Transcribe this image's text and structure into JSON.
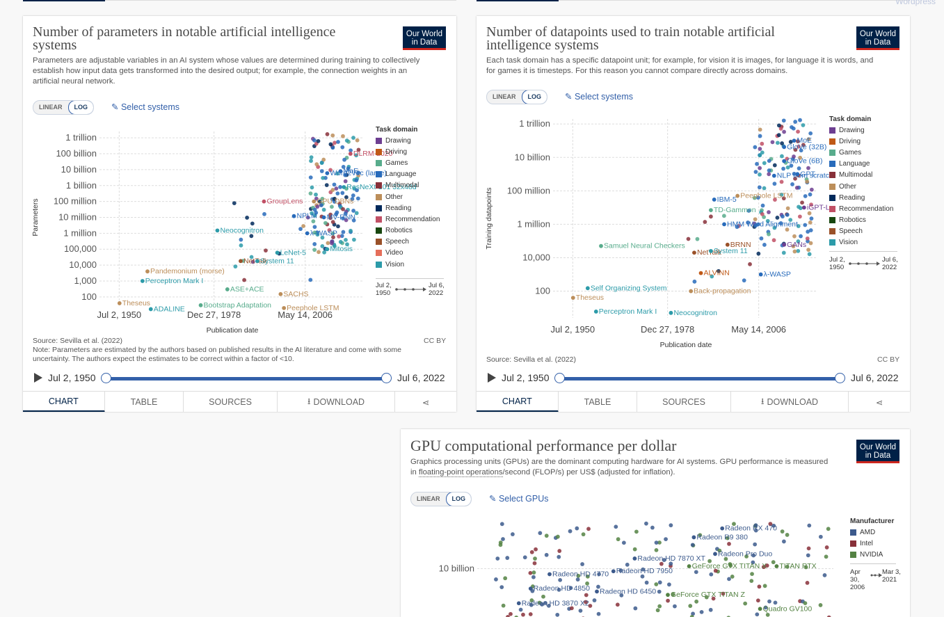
{
  "page": {
    "watermark": "Wordpress"
  },
  "tabs": {
    "chart": "CHART",
    "table": "TABLE",
    "sources": "SOURCES",
    "download": "DOWNLOAD"
  },
  "scale": {
    "linear": "LINEAR",
    "log": "LOG"
  },
  "logo": {
    "line1": "Our World",
    "line2": "in Data"
  },
  "colors": {
    "Drawing": "#6d3e91",
    "Driving": "#c05917",
    "Games": "#58ac8c",
    "Language": "#286bbb",
    "Multimodal": "#883039",
    "Other": "#bc8e5a",
    "Reading": "#00295b",
    "Recommendation": "#c15065",
    "Robotics": "#18470f",
    "Speech": "#9a5129",
    "Video": "#e56e5a",
    "Vision": "#2c9ba9",
    "AMD": "#3c5a8c",
    "Intel": "#883039",
    "NVIDIA": "#548243",
    "accent": "#3360a9",
    "brand": "#002147"
  },
  "card1": {
    "title": "Number of parameters in notable artificial intelligence systems",
    "subtitle": "Parameters are adjustable variables in an AI system whose values are determined during training to collectively establish how input data gets transformed into the desired output; for example, the connection weights in an artificial neural network.",
    "select_label": "Select systems",
    "legend_title": "Task domain",
    "legend": [
      "Drawing",
      "Driving",
      "Games",
      "Language",
      "Multimodal",
      "Other",
      "Reading",
      "Recommendation",
      "Robotics",
      "Speech",
      "Video",
      "Vision"
    ],
    "time_start": "Jul 2, 1950",
    "time_end": "Jul 6, 2022",
    "source": "Source: Sevilla et al. (2022)",
    "note": "Note: Parameters are estimated by the authors based on published results in the AI literature and come with some uncertainty. The authors expect the estimates to be correct within a factor of <10.",
    "license": "CC BY"
  },
  "card2": {
    "title": "Number of datapoints used to train notable artificial intelligence systems",
    "subtitle": "Each task domain has a specific datapoint unit; for example, for vision it is images, for language it is words, and for games it is timesteps. For this reason you cannot compare directly across domains.",
    "select_label": "Select systems",
    "legend_title": "Task domain",
    "legend": [
      "Drawing",
      "Driving",
      "Games",
      "Language",
      "Multimodal",
      "Other",
      "Reading",
      "Recommendation",
      "Robotics",
      "Speech",
      "Vision"
    ],
    "time_start": "Jul 2, 1950",
    "time_end": "Jul 6, 2022",
    "source": "Source: Sevilla et al. (2022)",
    "license": "CC BY"
  },
  "card3": {
    "title": "GPU computational performance per dollar",
    "subtitle_a": "Graphics processing units (GPUs) are the dominant computing hardware for AI systems. GPU performance is measured in ",
    "subtitle_link": "floating-point operations",
    "subtitle_b": "/second (FLOP/s) per US$ (adjusted for inflation).",
    "select_label": "Select GPUs",
    "legend_title": "Manufacturer",
    "legend": [
      "AMD",
      "Intel",
      "NVIDIA"
    ],
    "time_start": "Apr 30, 2006",
    "time_end": "Mar 3, 2021"
  },
  "chart_data": [
    {
      "type": "scatter",
      "title": "Number of parameters in notable artificial intelligence systems",
      "xlabel": "Publication date",
      "ylabel": "Parameters",
      "yscale": "log",
      "x_ticks": [
        "Jul 2, 1950",
        "Dec 27, 1978",
        "May 14, 2006"
      ],
      "y_ticks": [
        "100",
        "1,000",
        "10,000",
        "100,000",
        "1 million",
        "10 million",
        "100 million",
        "1 billion",
        "10 billion",
        "100 billion",
        "1 trillion"
      ],
      "grid": true,
      "legend": "right",
      "points": [
        {
          "label": "Theseus",
          "domain": "Other",
          "x": 1950.6,
          "y": 40
        },
        {
          "label": "Perceptron Mark I",
          "domain": "Vision",
          "x": 1957.5,
          "y": 1000
        },
        {
          "label": "ADALINE",
          "domain": "Vision",
          "x": 1960,
          "y": 17
        },
        {
          "label": "Pandemonium (morse)",
          "domain": "Other",
          "x": 1959,
          "y": 4000
        },
        {
          "label": "Neocognitron",
          "domain": "Vision",
          "x": 1980,
          "y": 1500000
        },
        {
          "label": "Bootstrap Adaptation",
          "domain": "Games",
          "x": 1975,
          "y": 30
        },
        {
          "label": "ASE+ACE",
          "domain": "Games",
          "x": 1983,
          "y": 300
        },
        {
          "label": "NetTalk",
          "domain": "Speech",
          "x": 1987,
          "y": 18000
        },
        {
          "label": "System 11",
          "domain": "Vision",
          "x": 1992,
          "y": 18000
        },
        {
          "label": "LeNet-5",
          "domain": "Vision",
          "x": 1998,
          "y": 60000
        },
        {
          "label": "SACHS",
          "domain": "Other",
          "x": 1999,
          "y": 150
        },
        {
          "label": "Peephole LSTM",
          "domain": "Other",
          "x": 2000,
          "y": 20
        },
        {
          "label": "NPLM",
          "domain": "Language",
          "x": 2003,
          "y": 12000000
        },
        {
          "label": "λ-WASP",
          "domain": "Language",
          "x": 2007,
          "y": 1000000
        },
        {
          "label": "GroupLens",
          "domain": "Recommendation",
          "x": 1994,
          "y": 100000000
        },
        {
          "label": "Mitosis",
          "domain": "Vision",
          "x": 2013,
          "y": 100000
        },
        {
          "label": "MV-RNN",
          "domain": "Language",
          "x": 2012,
          "y": 10000000
        },
        {
          "label": "GPU DBNs",
          "domain": "Other",
          "x": 2009,
          "y": 100000000
        },
        {
          "label": "ResNeXt-101 32x48d",
          "domain": "Vision",
          "x": 2018,
          "y": 800000000
        },
        {
          "label": "Word2Vec (large)",
          "domain": "Language",
          "x": 2013,
          "y": 6000000000
        },
        {
          "label": "MoE",
          "domain": "Language",
          "x": 2017,
          "y": 8000000000
        },
        {
          "label": "DLRM-2020",
          "domain": "Recommendation",
          "x": 2020,
          "y": 100000000000
        }
      ]
    },
    {
      "type": "scatter",
      "title": "Number of datapoints used to train notable artificial intelligence systems",
      "xlabel": "Publication date",
      "ylabel": "Training datapoints",
      "yscale": "log",
      "x_ticks": [
        "Jul 2, 1950",
        "Dec 27, 1978",
        "May 14, 2006"
      ],
      "y_ticks": [
        "100",
        "10,000",
        "1 million",
        "100 million",
        "10 billion",
        "1 trillion"
      ],
      "grid": true,
      "legend": "right",
      "points": [
        {
          "label": "Theseus",
          "domain": "Other",
          "x": 1950.6,
          "y": 40
        },
        {
          "label": "Perceptron Mark I",
          "domain": "Vision",
          "x": 1957.5,
          "y": 6
        },
        {
          "label": "Self Organizing System",
          "domain": "Vision",
          "x": 1955,
          "y": 150
        },
        {
          "label": "Samuel Neural Checkers",
          "domain": "Games",
          "x": 1959,
          "y": 50000
        },
        {
          "label": "Neocognitron",
          "domain": "Vision",
          "x": 1980,
          "y": 5
        },
        {
          "label": "Back-propagation",
          "domain": "Other",
          "x": 1986,
          "y": 100
        },
        {
          "label": "ALVINN",
          "domain": "Driving",
          "x": 1989,
          "y": 1200
        },
        {
          "label": "NetTalk",
          "domain": "Speech",
          "x": 1987,
          "y": 20000
        },
        {
          "label": "System 11",
          "domain": "Vision",
          "x": 1992,
          "y": 25000
        },
        {
          "label": "BRNN",
          "domain": "Speech",
          "x": 1997,
          "y": 60000
        },
        {
          "label": "λ-WASP",
          "domain": "Language",
          "x": 2007,
          "y": 1000
        },
        {
          "label": "TD-Gammon",
          "domain": "Games",
          "x": 1992,
          "y": 7000000
        },
        {
          "label": "HMM Word Alignment",
          "domain": "Language",
          "x": 1996,
          "y": 1000000
        },
        {
          "label": "GANs",
          "domain": "Drawing",
          "x": 2014,
          "y": 60000
        },
        {
          "label": "IBM-5",
          "domain": "Language",
          "x": 1993,
          "y": 30000000
        },
        {
          "label": "Peephole LSTM",
          "domain": "Other",
          "x": 2000,
          "y": 50000000
        },
        {
          "label": "iGPT-L",
          "domain": "Drawing",
          "x": 2020,
          "y": 10000000
        },
        {
          "label": "NLP from scratch",
          "domain": "Language",
          "x": 2011,
          "y": 800000000
        },
        {
          "label": "GPT",
          "domain": "Language",
          "x": 2018,
          "y": 1000000000
        },
        {
          "label": "GloVe (6B)",
          "domain": "Language",
          "x": 2014,
          "y": 6000000000
        },
        {
          "label": "GloVe (32B)",
          "domain": "Language",
          "x": 2014,
          "y": 42000000000
        },
        {
          "label": "MoE",
          "domain": "Language",
          "x": 2017,
          "y": 100000000000
        }
      ]
    },
    {
      "type": "scatter",
      "title": "GPU computational performance per dollar",
      "yscale": "log",
      "y_ticks": [
        "10 billion"
      ],
      "grid": true,
      "legend": "right",
      "points": [
        {
          "label": "Radeon RX 470",
          "manufacturer": "AMD",
          "x": 2016.6,
          "y": 50000000000
        },
        {
          "label": "Radeon R9 380",
          "manufacturer": "AMD",
          "x": 2015.4,
          "y": 35000000000
        },
        {
          "label": "Radeon HD 4770",
          "manufacturer": "AMD",
          "x": 2009.3,
          "y": 8000000000
        },
        {
          "label": "Radeon HD 7870 XT",
          "manufacturer": "AMD",
          "x": 2012.9,
          "y": 15000000000
        },
        {
          "label": "Radeon Pro Duo",
          "manufacturer": "AMD",
          "x": 2016.3,
          "y": 18000000000
        },
        {
          "label": "Radeon HD 4850",
          "manufacturer": "AMD",
          "x": 2008.5,
          "y": 4500000000
        },
        {
          "label": "Radeon HD 7950",
          "manufacturer": "AMD",
          "x": 2012,
          "y": 9000000000
        },
        {
          "label": "GeForce GTX TITAN X",
          "manufacturer": "NVIDIA",
          "x": 2015.2,
          "y": 11000000000
        },
        {
          "label": "TITAN RTX",
          "manufacturer": "NVIDIA",
          "x": 2018.9,
          "y": 11000000000
        },
        {
          "label": "Radeon HD 6450",
          "manufacturer": "AMD",
          "x": 2011.3,
          "y": 4000000000
        },
        {
          "label": "Radeon HD 3870 X2",
          "manufacturer": "AMD",
          "x": 2008,
          "y": 2500000000
        },
        {
          "label": "GeForce GTX TITAN Z",
          "manufacturer": "NVIDIA",
          "x": 2014.3,
          "y": 3500000000
        },
        {
          "label": "Quadro GV100",
          "manufacturer": "NVIDIA",
          "x": 2018.2,
          "y": 2000000000
        }
      ]
    }
  ]
}
